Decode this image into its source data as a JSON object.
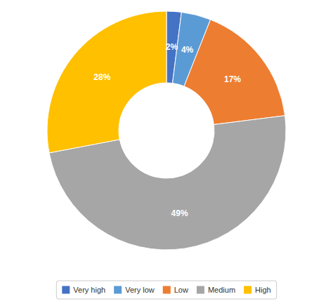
{
  "chart_data": {
    "type": "pie",
    "categories": [
      "Very high",
      "Very low",
      "Low",
      "Medium",
      "High"
    ],
    "values": [
      2,
      4,
      17,
      49,
      28
    ],
    "value_labels": [
      "2%",
      "4%",
      "17%",
      "49%",
      "28%"
    ],
    "colors": [
      "#4472C4",
      "#5B9BD5",
      "#ED7D31",
      "#A6A6A6",
      "#FFC000"
    ],
    "data_labels": true,
    "legend": "bottom"
  }
}
